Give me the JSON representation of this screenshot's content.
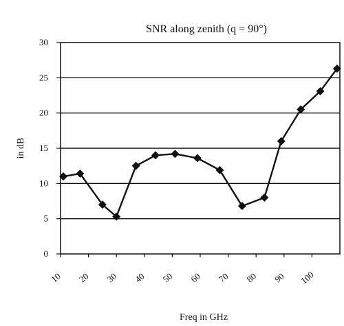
{
  "chart_data": {
    "type": "line",
    "title": "SNR along zenith (q = 90°)",
    "xlabel": "Freq in GHz",
    "ylabel": "in dB",
    "ylim": [
      0,
      30
    ],
    "xlim": [
      10,
      110
    ],
    "yticks": [
      0,
      5,
      10,
      15,
      20,
      25,
      30
    ],
    "xticks": [
      10,
      20,
      30,
      40,
      50,
      60,
      70,
      80,
      90,
      100
    ],
    "xtick_labels": [
      "10",
      "20",
      "30",
      "40",
      "50",
      "60",
      "70",
      "80",
      "90",
      "100"
    ],
    "grid": true,
    "series": [
      {
        "x": [
          11,
          17,
          25,
          30,
          37,
          44,
          51,
          59,
          67,
          75,
          83,
          89,
          96,
          103,
          109
        ],
        "values": [
          11,
          11.4,
          7,
          5.3,
          12.5,
          14,
          14.2,
          13.6,
          11.9,
          6.8,
          8,
          16,
          20.5,
          23.1,
          26.3
        ]
      }
    ]
  },
  "colors": {
    "line": "#111111",
    "marker": "#111111",
    "grid": "#111111"
  }
}
